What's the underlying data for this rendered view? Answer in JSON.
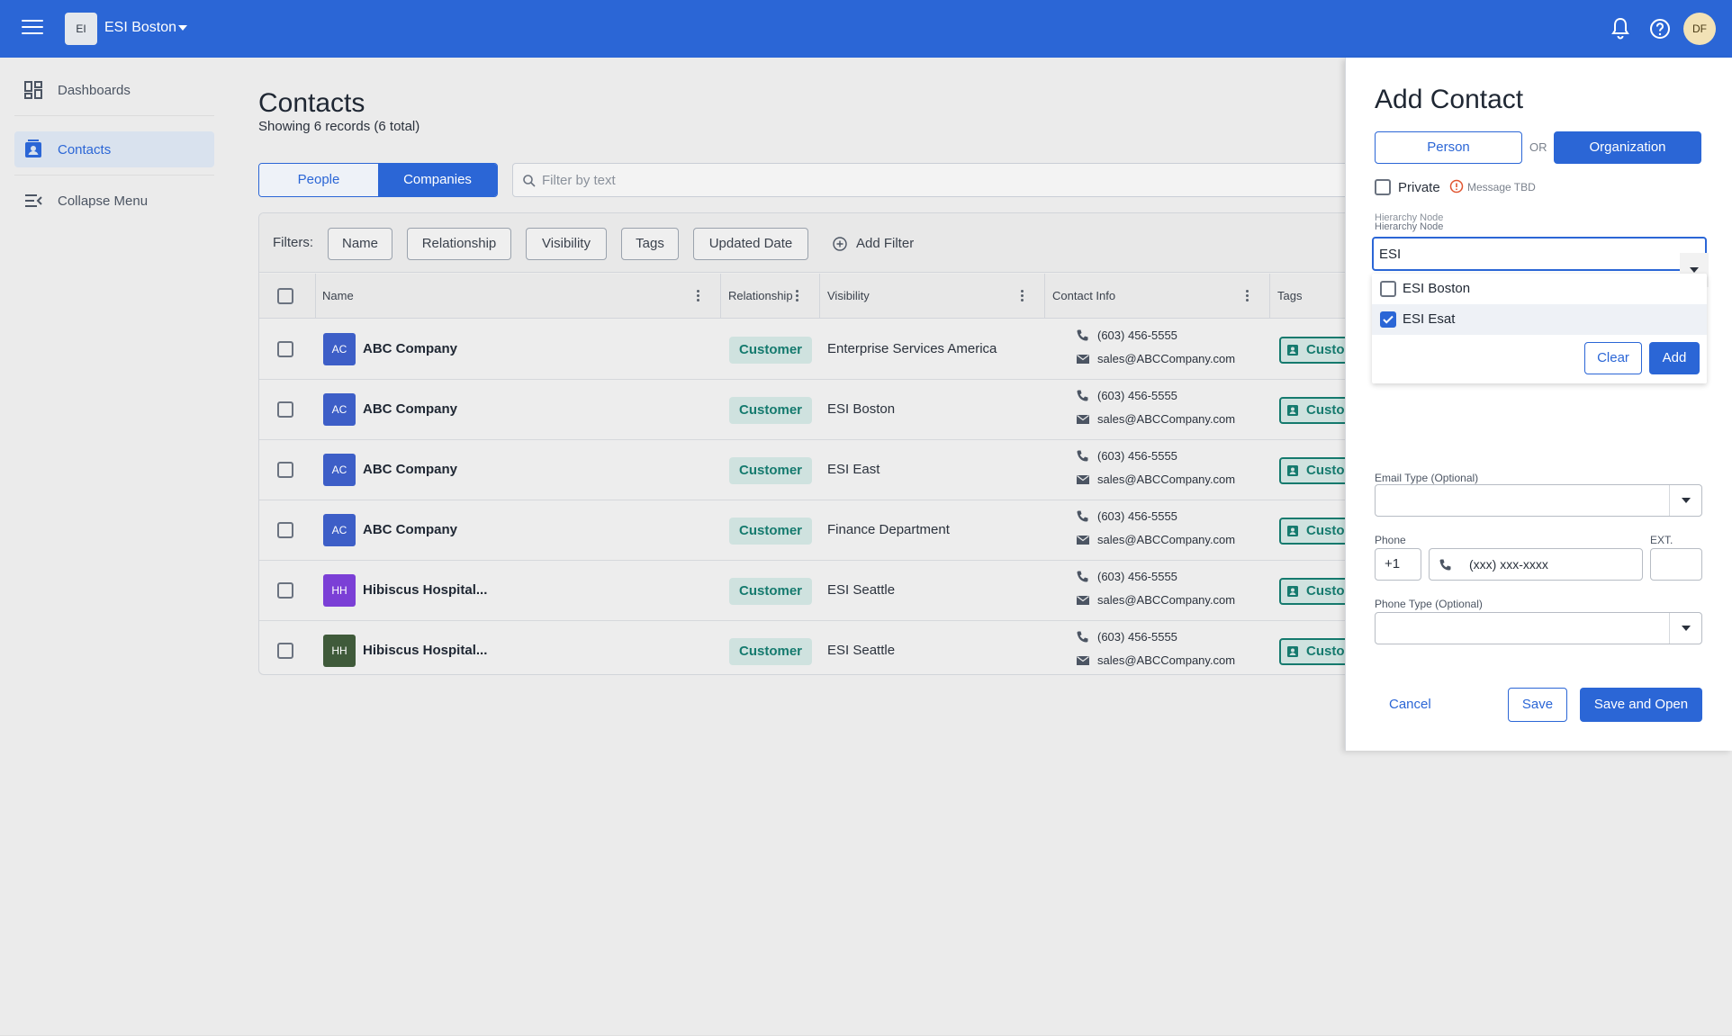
{
  "topbar": {
    "org_initials": "EI",
    "org_name": "ESI Boston",
    "user_initials": "DF"
  },
  "sidebar": {
    "items": [
      {
        "label": "Dashboards",
        "icon": "dashboard-icon"
      },
      {
        "label": "Contacts",
        "icon": "contacts-icon",
        "active": true
      },
      {
        "label": "Collapse Menu",
        "icon": "collapse-menu-icon"
      }
    ]
  },
  "main": {
    "title": "Contacts",
    "subtitle": "Showing 6 records (6 total)",
    "tabs": [
      {
        "label": "People",
        "selected": false
      },
      {
        "label": "Companies",
        "selected": true
      }
    ],
    "search_placeholder": "Filter by text",
    "filters_label": "Filters:",
    "filter_chips": [
      "Name",
      "Relationship",
      "Visibility",
      "Tags",
      "Updated Date"
    ],
    "add_filter_label": "Add Filter",
    "columns": [
      "Name",
      "Relationship",
      "Visibility",
      "Contact Info",
      "Tags"
    ],
    "rows": [
      {
        "initials": "AC",
        "avatar_color": "#3d5ec7",
        "name": "ABC Company",
        "relationship": "Customer",
        "visibility": "Enterprise Services America",
        "phone": "(603) 456-5555",
        "email": "sales@ABCCompany.com",
        "tag": "Custom"
      },
      {
        "initials": "AC",
        "avatar_color": "#3d5ec7",
        "name": "ABC Company",
        "relationship": "Customer",
        "visibility": "ESI Boston",
        "phone": "(603) 456-5555",
        "email": "sales@ABCCompany.com",
        "tag": "Custom"
      },
      {
        "initials": "AC",
        "avatar_color": "#3d5ec7",
        "name": "ABC Company",
        "relationship": "Customer",
        "visibility": "ESI East",
        "phone": "(603) 456-5555",
        "email": "sales@ABCCompany.com",
        "tag": "Custom"
      },
      {
        "initials": "AC",
        "avatar_color": "#3d5ec7",
        "name": "ABC Company",
        "relationship": "Customer",
        "visibility": "Finance Department",
        "phone": "(603) 456-5555",
        "email": "sales@ABCCompany.com",
        "tag": "Custom"
      },
      {
        "initials": "HH",
        "avatar_color": "#7b3fd6",
        "name": "Hibiscus Hospital...",
        "relationship": "Customer",
        "visibility": "ESI Seattle",
        "phone": "(603) 456-5555",
        "email": "sales@ABCCompany.com",
        "tag": "Custom"
      },
      {
        "initials": "HH",
        "avatar_color": "#3f5a3a",
        "name": "Hibiscus Hospital...",
        "relationship": "Customer",
        "visibility": "ESI Seattle",
        "phone": "(603) 456-5555",
        "email": "sales@ABCCompany.com",
        "tag": "Custom"
      }
    ]
  },
  "drawer": {
    "title": "Add Contact",
    "person_label": "Person",
    "or_label": "OR",
    "organization_label": "Organization",
    "private_label": "Private",
    "message_tbd": "Message TBD",
    "hierarchy_label_ghost": "Hierarchy Node",
    "hierarchy_label": "Hierarchy Node",
    "hierarchy_value": "ESI",
    "dropdown_options": [
      {
        "label": "ESI Boston",
        "checked": false
      },
      {
        "label": "ESI Esat",
        "checked": true
      }
    ],
    "clear_label": "Clear",
    "add_label": "Add",
    "email_type_label": "Email Type (Optional)",
    "phone_label": "Phone",
    "ext_label": "EXT.",
    "phone_cc": "+1",
    "phone_placeholder": "(xxx) xxx-xxxx",
    "phone_type_label": "Phone Type (Optional)",
    "cancel_label": "Cancel",
    "save_label": "Save",
    "save_open_label": "Save and Open"
  },
  "colors": {
    "brand_blue": "#2b66d6",
    "teal": "#157a6e",
    "teal_bg": "#cfe2df"
  }
}
